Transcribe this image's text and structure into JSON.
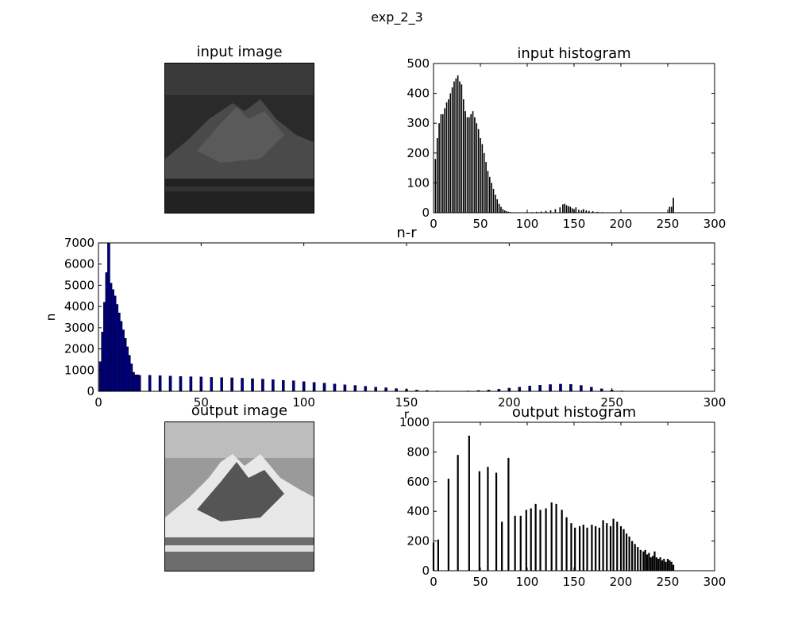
{
  "figure_title": "exp_2_3",
  "colors": {
    "axis": "#000000",
    "hist_bar": "#000000",
    "nr_bar": "#000080",
    "nr_bar_yellow": "#c8b400"
  },
  "panels": {
    "input_image": {
      "title": "input image",
      "tone": "dark grayscale mountain landscape"
    },
    "output_image": {
      "title": "output image",
      "tone": "high contrast grayscale mountain landscape"
    }
  },
  "chart_data": [
    {
      "id": "input_histogram",
      "type": "bar",
      "title": "input histogram",
      "xlabel": "",
      "ylabel": "",
      "xlim": [
        0,
        300
      ],
      "ylim": [
        0,
        500
      ],
      "xticks": [
        0,
        50,
        100,
        150,
        200,
        250,
        300
      ],
      "yticks": [
        0,
        100,
        200,
        300,
        400,
        500
      ],
      "x": [
        2,
        4,
        6,
        8,
        10,
        12,
        14,
        16,
        18,
        20,
        22,
        24,
        26,
        28,
        30,
        32,
        34,
        36,
        38,
        40,
        42,
        44,
        46,
        48,
        50,
        52,
        54,
        56,
        58,
        60,
        62,
        64,
        66,
        68,
        70,
        72,
        74,
        76,
        78,
        80,
        82,
        84,
        86,
        88,
        90,
        95,
        100,
        105,
        110,
        115,
        120,
        125,
        130,
        135,
        138,
        140,
        142,
        144,
        146,
        148,
        150,
        152,
        155,
        158,
        160,
        163,
        166,
        170,
        175,
        180,
        185,
        190,
        195,
        200,
        210,
        220,
        230,
        240,
        250,
        252,
        254,
        256,
        258
      ],
      "values": [
        180,
        250,
        300,
        330,
        330,
        350,
        370,
        380,
        400,
        420,
        440,
        450,
        460,
        440,
        430,
        380,
        340,
        320,
        320,
        330,
        340,
        320,
        300,
        280,
        250,
        230,
        200,
        170,
        140,
        120,
        100,
        80,
        60,
        45,
        30,
        20,
        12,
        8,
        5,
        3,
        2,
        1,
        1,
        1,
        1,
        0,
        0,
        2,
        3,
        4,
        6,
        8,
        12,
        18,
        28,
        30,
        25,
        22,
        20,
        15,
        12,
        18,
        10,
        8,
        12,
        8,
        6,
        5,
        3,
        2,
        1,
        1,
        1,
        1,
        0,
        0,
        0,
        0,
        0,
        20,
        20,
        50,
        0
      ]
    },
    {
      "id": "n_r",
      "type": "bar",
      "title": "n-r",
      "xlabel": "r",
      "ylabel": "n",
      "xlim": [
        0,
        300
      ],
      "ylim": [
        0,
        7000
      ],
      "xticks": [
        0,
        50,
        100,
        150,
        200,
        250,
        300
      ],
      "yticks": [
        0,
        1000,
        2000,
        3000,
        4000,
        5000,
        6000,
        7000
      ],
      "x": [
        1,
        2,
        3,
        4,
        5,
        6,
        7,
        8,
        9,
        10,
        11,
        12,
        13,
        14,
        15,
        16,
        17,
        18,
        19,
        20,
        25,
        30,
        35,
        40,
        45,
        50,
        55,
        60,
        65,
        70,
        75,
        80,
        85,
        90,
        95,
        100,
        105,
        110,
        115,
        120,
        125,
        130,
        135,
        140,
        145,
        150,
        155,
        160,
        165,
        170,
        175,
        180,
        185,
        190,
        195,
        200,
        205,
        210,
        215,
        220,
        225,
        230,
        235,
        240,
        245,
        250,
        255,
        260,
        270,
        280,
        290
      ],
      "values": [
        1400,
        2800,
        4200,
        5600,
        7000,
        5100,
        4800,
        4500,
        4100,
        3700,
        3300,
        2900,
        2500,
        2100,
        1700,
        1300,
        900,
        780,
        780,
        760,
        760,
        740,
        720,
        700,
        690,
        680,
        660,
        650,
        640,
        620,
        600,
        580,
        550,
        520,
        500,
        460,
        420,
        390,
        350,
        310,
        280,
        240,
        200,
        170,
        130,
        90,
        60,
        40,
        20,
        10,
        10,
        20,
        40,
        60,
        100,
        150,
        200,
        250,
        290,
        320,
        340,
        330,
        280,
        200,
        120,
        60,
        20,
        5,
        0,
        0,
        0
      ]
    },
    {
      "id": "output_histogram",
      "type": "bar",
      "title": "output histogram",
      "xlabel": "",
      "ylabel": "",
      "xlim": [
        0,
        300
      ],
      "ylim": [
        0,
        1000
      ],
      "xticks": [
        0,
        50,
        100,
        150,
        200,
        250,
        300
      ],
      "yticks": [
        0,
        200,
        400,
        600,
        800,
        1000
      ],
      "x": [
        0,
        5,
        16,
        26,
        38,
        49,
        58,
        67,
        73,
        80,
        87,
        93,
        99,
        104,
        109,
        114,
        120,
        126,
        131,
        137,
        142,
        147,
        151,
        156,
        160,
        164,
        169,
        173,
        177,
        181,
        185,
        189,
        192,
        196,
        200,
        203,
        206,
        209,
        212,
        215,
        218,
        221,
        224,
        226,
        228,
        230,
        232,
        234,
        236,
        238,
        240,
        242,
        244,
        246,
        248,
        250,
        252,
        254,
        256
      ],
      "values": [
        190,
        210,
        620,
        780,
        910,
        670,
        700,
        660,
        330,
        760,
        370,
        370,
        410,
        420,
        450,
        410,
        420,
        460,
        450,
        410,
        360,
        320,
        290,
        300,
        310,
        290,
        310,
        300,
        290,
        340,
        320,
        300,
        350,
        330,
        300,
        280,
        250,
        230,
        200,
        180,
        160,
        140,
        130,
        140,
        110,
        120,
        90,
        100,
        130,
        90,
        80,
        90,
        70,
        80,
        60,
        80,
        70,
        60,
        40
      ]
    }
  ]
}
